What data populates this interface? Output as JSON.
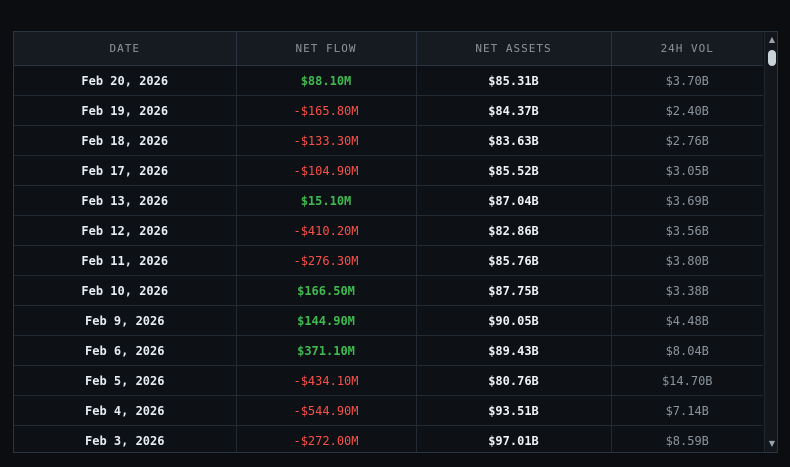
{
  "table": {
    "headers": [
      "DATE",
      "NET FLOW",
      "NET ASSETS",
      "24H VOL"
    ],
    "rows": [
      {
        "date": "Feb 20, 2026",
        "net_flow": "$88.10M",
        "net_assets": "$85.31B",
        "vol": "$3.70B"
      },
      {
        "date": "Feb 19, 2026",
        "net_flow": "-$165.80M",
        "net_assets": "$84.37B",
        "vol": "$2.40B"
      },
      {
        "date": "Feb 18, 2026",
        "net_flow": "-$133.30M",
        "net_assets": "$83.63B",
        "vol": "$2.76B"
      },
      {
        "date": "Feb 17, 2026",
        "net_flow": "-$104.90M",
        "net_assets": "$85.52B",
        "vol": "$3.05B"
      },
      {
        "date": "Feb 13, 2026",
        "net_flow": "$15.10M",
        "net_assets": "$87.04B",
        "vol": "$3.69B"
      },
      {
        "date": "Feb 12, 2026",
        "net_flow": "-$410.20M",
        "net_assets": "$82.86B",
        "vol": "$3.56B"
      },
      {
        "date": "Feb 11, 2026",
        "net_flow": "-$276.30M",
        "net_assets": "$85.76B",
        "vol": "$3.80B"
      },
      {
        "date": "Feb 10, 2026",
        "net_flow": "$166.50M",
        "net_assets": "$87.75B",
        "vol": "$3.38B"
      },
      {
        "date": "Feb 9, 2026",
        "net_flow": "$144.90M",
        "net_assets": "$90.05B",
        "vol": "$4.48B"
      },
      {
        "date": "Feb 6, 2026",
        "net_flow": "$371.10M",
        "net_assets": "$89.43B",
        "vol": "$8.04B"
      },
      {
        "date": "Feb 5, 2026",
        "net_flow": "-$434.10M",
        "net_assets": "$80.76B",
        "vol": "$14.70B"
      },
      {
        "date": "Feb 4, 2026",
        "net_flow": "-$544.90M",
        "net_assets": "$93.51B",
        "vol": "$7.14B"
      },
      {
        "date": "Feb 3, 2026",
        "net_flow": "-$272.00M",
        "net_assets": "$97.01B",
        "vol": "$8.59B"
      }
    ]
  },
  "colors": {
    "positive": "#3fb950",
    "negative": "#f85149",
    "background": "#0b0d10"
  },
  "scrollbar": {
    "up_icon": "triangle-up-icon",
    "down_icon": "triangle-down-icon",
    "up_glyph": "▲",
    "down_glyph": "▼"
  }
}
